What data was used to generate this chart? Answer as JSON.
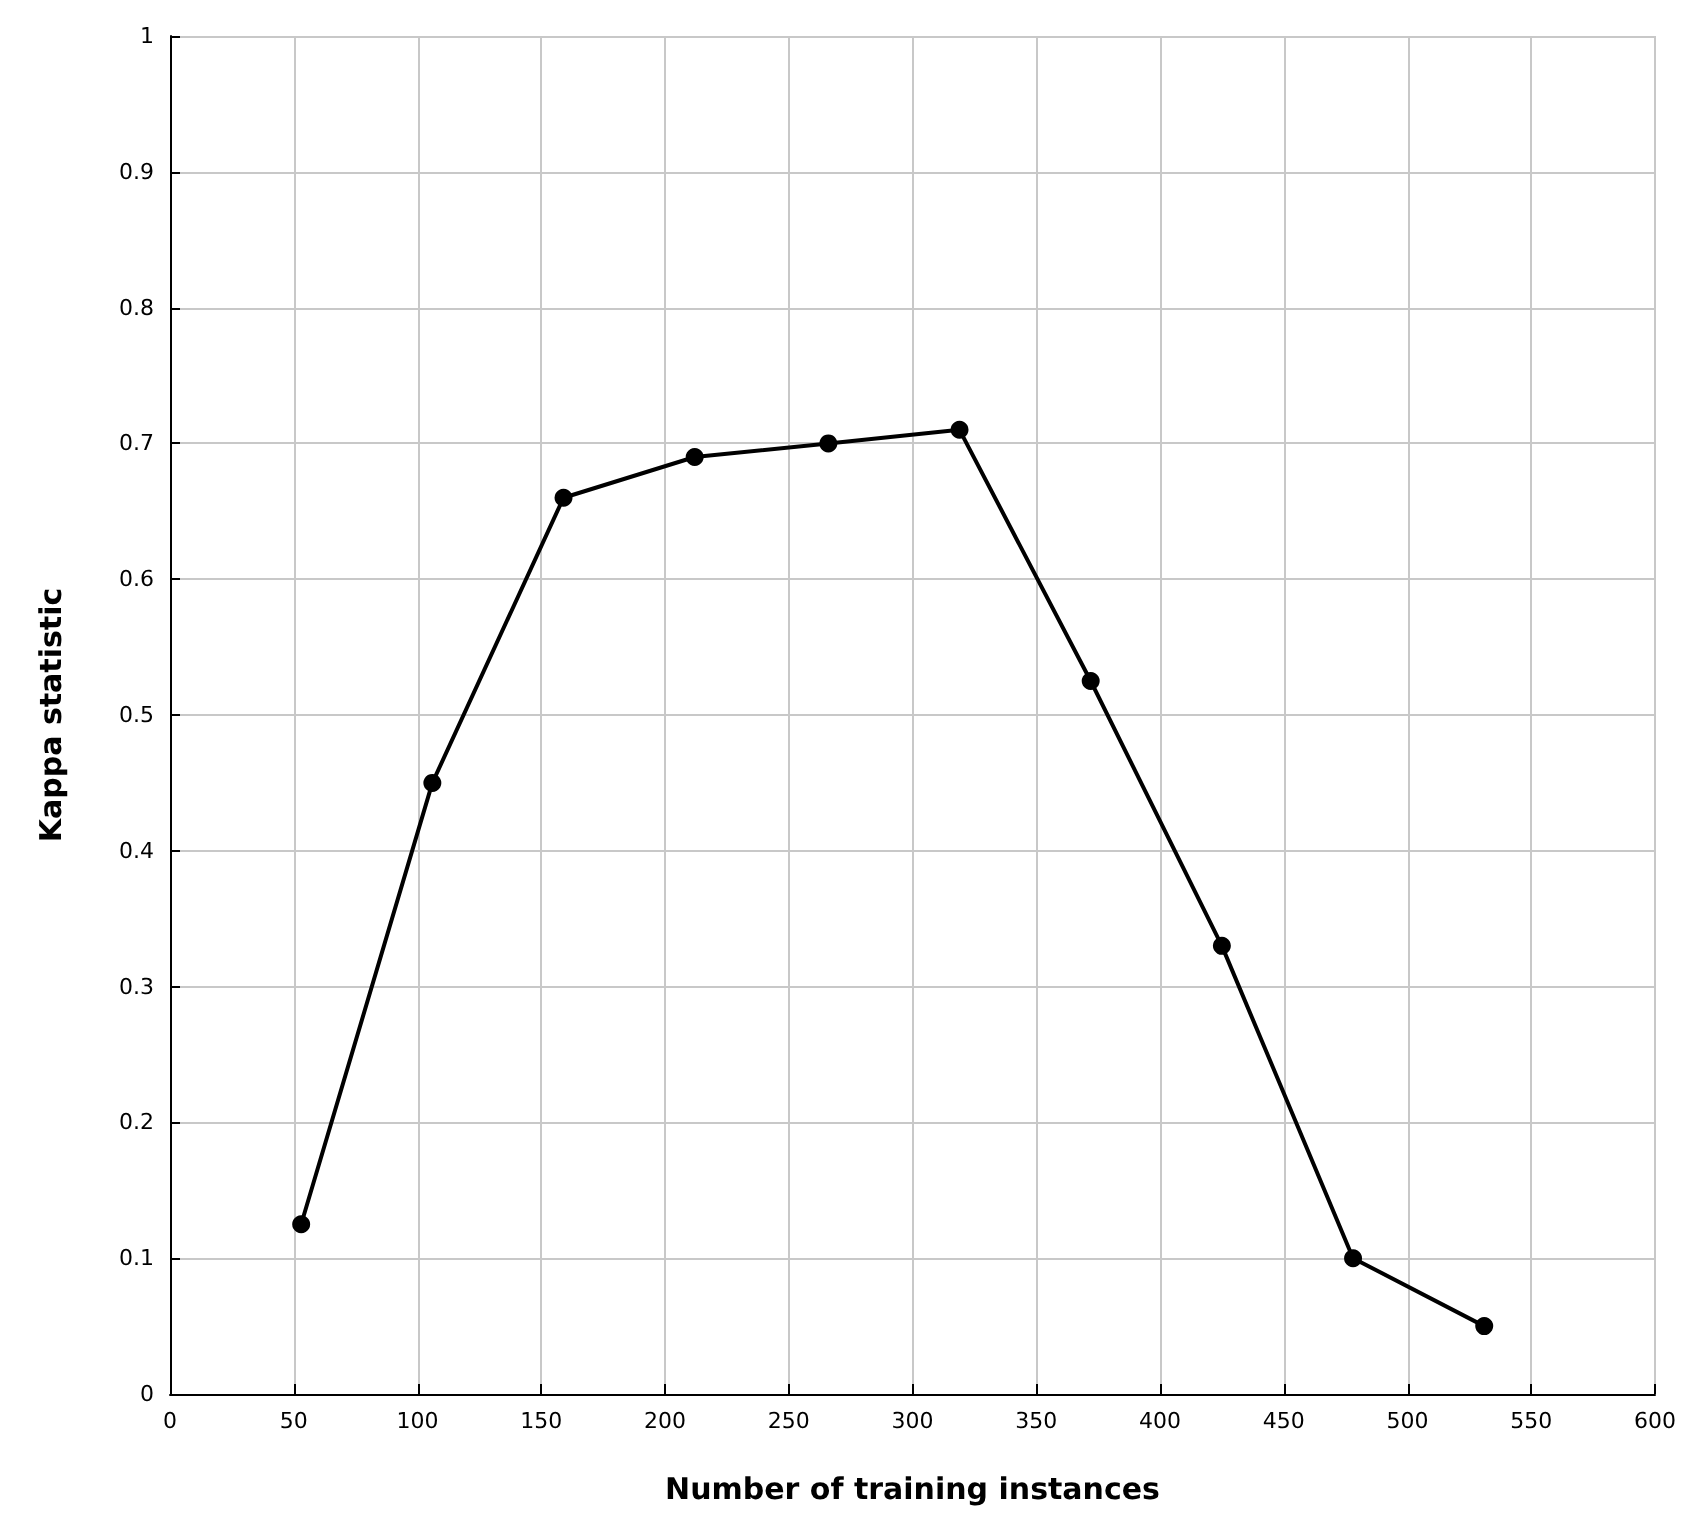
{
  "chart_data": {
    "type": "line",
    "xlabel": "Number of training instances",
    "ylabel": "Kappa statistic",
    "x": [
      53,
      106,
      159,
      212,
      266,
      319,
      372,
      425,
      478,
      531
    ],
    "series": [
      {
        "color": "#000000",
        "values": [
          0.125,
          0.45,
          0.66,
          0.69,
          0.7,
          0.71,
          0.525,
          0.33,
          0.1,
          0.05
        ]
      }
    ],
    "xlim": [
      0,
      600
    ],
    "xticks": [
      0,
      50,
      100,
      150,
      200,
      250,
      300,
      350,
      400,
      450,
      500,
      550,
      600
    ],
    "ylim": [
      0,
      1
    ],
    "yticks": [
      0,
      0.1,
      0.2,
      0.3,
      0.4,
      0.5,
      0.6,
      0.7,
      0.8,
      0.9,
      1
    ],
    "grid": true,
    "marker": "circle",
    "line_style": "solid"
  }
}
